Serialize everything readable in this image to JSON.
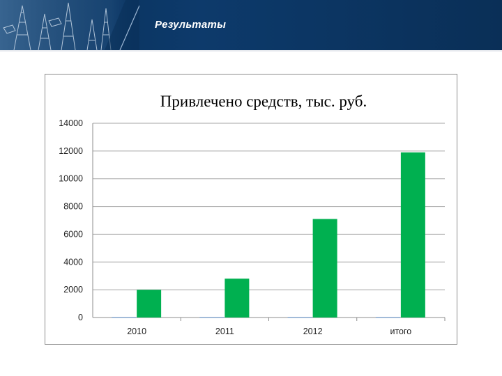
{
  "header": {
    "title": "Результаты"
  },
  "colors": {
    "header_bg": "#0a2f57",
    "bar_green": "#00b050",
    "bar_blue": "#4f81bd"
  },
  "chart_data": {
    "type": "bar",
    "title": "Привлечено средств, тыс. руб.",
    "categories": [
      "2010",
      "2011",
      "2012",
      "итого"
    ],
    "series": [
      {
        "values": [
          30,
          30,
          30,
          30
        ],
        "color": "#4f81bd"
      },
      {
        "values": [
          2000,
          2800,
          7100,
          11900
        ],
        "color": "#00b050"
      }
    ],
    "ylim": [
      0,
      14000
    ],
    "yticks": [
      0,
      2000,
      4000,
      6000,
      8000,
      10000,
      12000,
      14000
    ],
    "grid": true,
    "legend": "none"
  }
}
